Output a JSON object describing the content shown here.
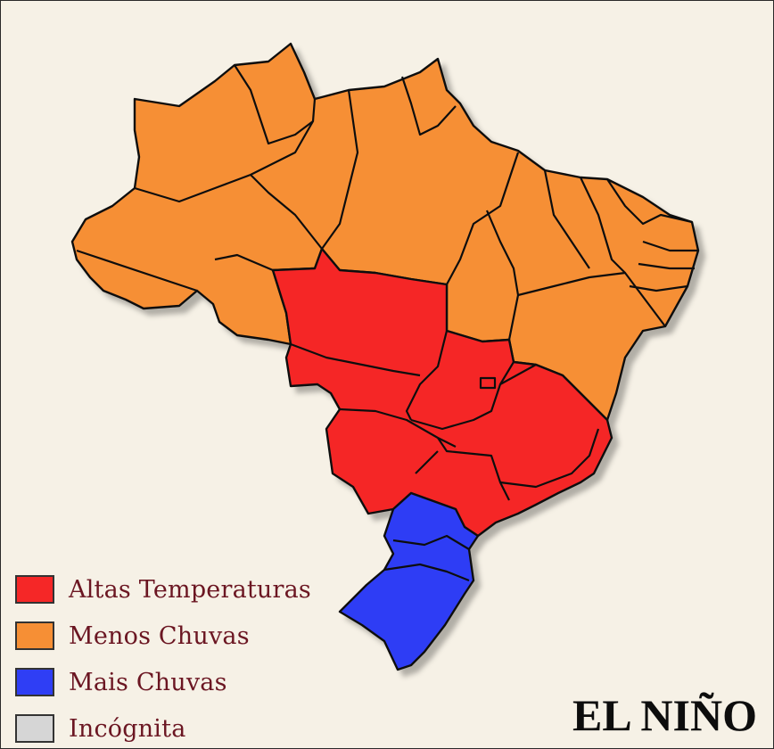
{
  "title": "EL NIÑO",
  "colors": {
    "background": "#f6f1e6",
    "altas_temperaturas": "#f52727",
    "menos_chuvas": "#f68f35",
    "mais_chuvas": "#2f3ef5",
    "incognita": "#d6d6d6"
  },
  "legend": [
    {
      "label": "Altas Temperaturas",
      "color": "#f52727"
    },
    {
      "label": "Menos Chuvas",
      "color": "#f68f35"
    },
    {
      "label": "Mais Chuvas",
      "color": "#2f3ef5"
    },
    {
      "label": "Incógnita",
      "color": "#d6d6d6"
    }
  ],
  "regions": [
    {
      "id": "norte-nordeste",
      "category": "menos_chuvas"
    },
    {
      "id": "centro-oeste-sudeste",
      "category": "altas_temperaturas"
    },
    {
      "id": "sul",
      "category": "mais_chuvas"
    }
  ]
}
